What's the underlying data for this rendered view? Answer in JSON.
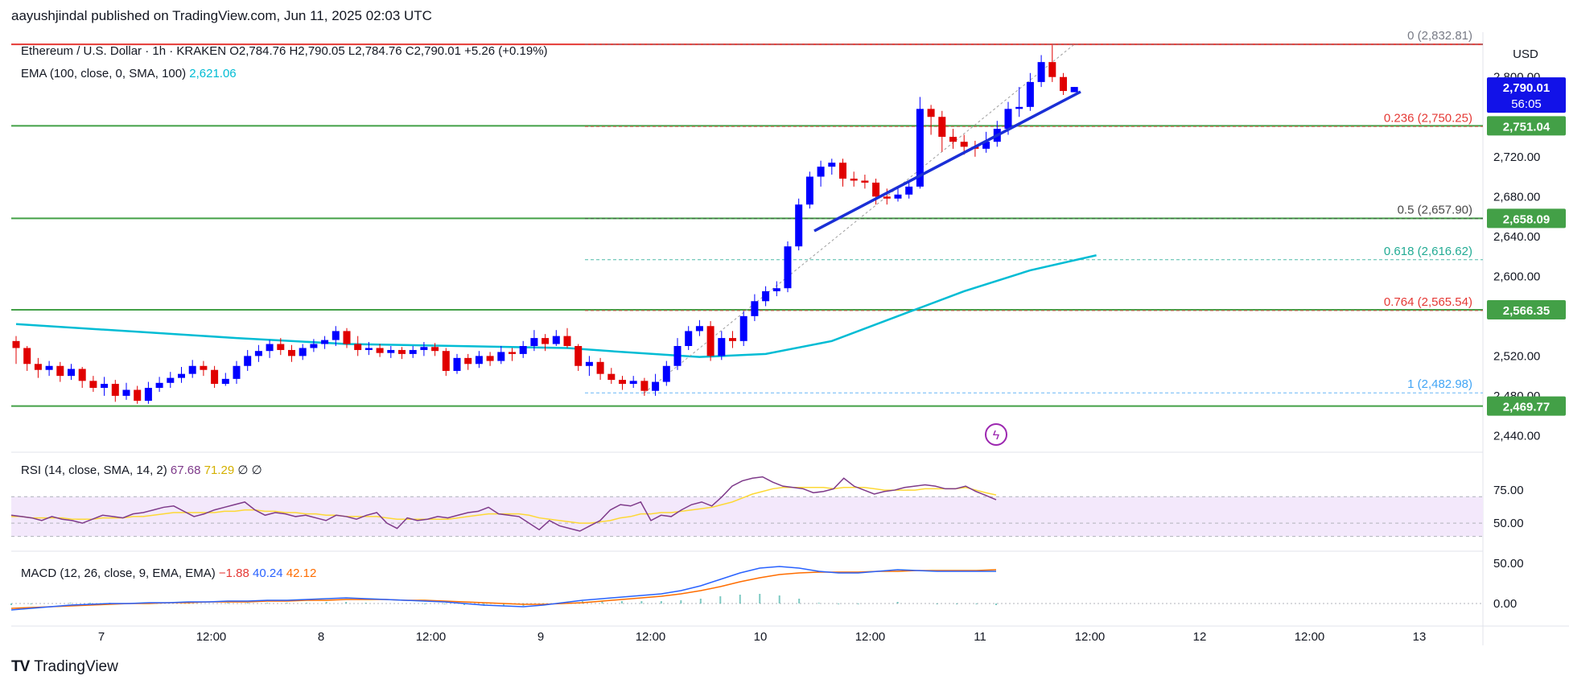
{
  "header": {
    "published": "aayushjindal published on TradingView.com, Jun 11, 2025 02:03 UTC"
  },
  "legend": {
    "symbol": "Ethereum / U.S. Dollar · 1h · KRAKEN",
    "ohlc": "O2,784.76  H2,790.05  L2,784.76  C2,790.01  +5.26 (+0.19%)",
    "ema_label": "EMA (100, close, 0, SMA, 100)",
    "ema_value": "2,621.06",
    "rsi_label": "RSI (14, close, SMA, 14, 2)",
    "rsi_value": "67.68",
    "rsi_ma": "71.29",
    "rsi_extra": "∅  ∅",
    "macd_label": "MACD (12, 26, close, 9, EMA, EMA)",
    "macd_hist": "−1.88",
    "macd_line": "40.24",
    "macd_signal": "42.12"
  },
  "price_axis": {
    "currency": "USD",
    "ticks": [
      "2,800.00",
      "2,720.00",
      "2,680.00",
      "2,640.00",
      "2,600.00",
      "2,520.00",
      "2,480.00",
      "2,440.00"
    ],
    "tick_values": [
      2800,
      2720,
      2680,
      2640,
      2600,
      2520,
      2480,
      2440
    ],
    "current_price": "2,790.01",
    "countdown": "56:05",
    "level_badges": [
      "2,751.04",
      "2,658.09",
      "2,566.35",
      "2,469.77"
    ]
  },
  "rsi_axis": {
    "ticks": [
      "75.00",
      "50.00"
    ]
  },
  "macd_axis": {
    "ticks": [
      "50.00",
      "0.00"
    ]
  },
  "time_axis": {
    "labels": [
      "7",
      "12:00",
      "8",
      "12:00",
      "9",
      "12:00",
      "10",
      "12:00",
      "11",
      "12:00",
      "12",
      "12:00",
      "13"
    ]
  },
  "fib_labels": [
    {
      "text": "0 (2,832.81)",
      "value": 2832.81,
      "color": "#787b86"
    },
    {
      "text": "0.236 (2,750.25)",
      "value": 2750.25,
      "color": "#e53935"
    },
    {
      "text": "0.5 (2,657.90)",
      "value": 2657.9,
      "color": "#4a4a4a"
    },
    {
      "text": "0.618 (2,616.62)",
      "value": 2616.62,
      "color": "#22ab94"
    },
    {
      "text": "0.764 (2,565.54)",
      "value": 2565.54,
      "color": "#e53935"
    },
    {
      "text": "1 (2,482.98)",
      "value": 2482.98,
      "color": "#42a5f5"
    }
  ],
  "colors": {
    "up": "#0000ff",
    "down": "#e00000",
    "ema": "#00bcd4",
    "support": "#43a047",
    "resistance": "#e53935",
    "trendline": "#1a2fd6",
    "rsi": "#7e3a8a",
    "rsi_ma": "#fdd835",
    "rsi_band": "#f3e8fb",
    "macd": "#2962ff",
    "signal": "#ff6d00",
    "hist": "#26a69a"
  },
  "logo": {
    "text": "TradingView",
    "mark": "TV"
  },
  "chart_data": {
    "type": "candlestick",
    "title": "Ethereum / U.S. Dollar · 1h · KRAKEN",
    "ylim": [
      2425,
      2845
    ],
    "horizontal_levels": [
      {
        "label": "2,832.81",
        "value": 2832.81,
        "color": "#e53935"
      },
      {
        "label": "2,751.04",
        "value": 2751.04,
        "color": "#43a047"
      },
      {
        "label": "2,658.09",
        "value": 2658.09,
        "color": "#43a047"
      },
      {
        "label": "2,566.35",
        "value": 2566.35,
        "color": "#43a047"
      },
      {
        "label": "2,469.77",
        "value": 2469.77,
        "color": "#43a047"
      }
    ],
    "candles": [
      [
        2535,
        2528,
        2540,
        2512
      ],
      [
        2528,
        2512,
        2530,
        2505
      ],
      [
        2512,
        2506,
        2518,
        2498
      ],
      [
        2506,
        2510,
        2515,
        2500
      ],
      [
        2510,
        2500,
        2514,
        2494
      ],
      [
        2500,
        2507,
        2512,
        2496
      ],
      [
        2507,
        2495,
        2509,
        2488
      ],
      [
        2495,
        2488,
        2500,
        2484
      ],
      [
        2488,
        2492,
        2499,
        2480
      ],
      [
        2492,
        2480,
        2496,
        2474
      ],
      [
        2480,
        2486,
        2493,
        2476
      ],
      [
        2486,
        2475,
        2490,
        2472
      ],
      [
        2475,
        2488,
        2494,
        2472
      ],
      [
        2488,
        2493,
        2499,
        2484
      ],
      [
        2493,
        2498,
        2504,
        2488
      ],
      [
        2498,
        2502,
        2509,
        2493
      ],
      [
        2502,
        2510,
        2516,
        2498
      ],
      [
        2510,
        2506,
        2515,
        2500
      ],
      [
        2506,
        2492,
        2510,
        2488
      ],
      [
        2492,
        2497,
        2503,
        2490
      ],
      [
        2497,
        2510,
        2515,
        2492
      ],
      [
        2510,
        2520,
        2526,
        2505
      ],
      [
        2520,
        2525,
        2531,
        2514
      ],
      [
        2525,
        2532,
        2536,
        2518
      ],
      [
        2532,
        2526,
        2538,
        2521
      ],
      [
        2526,
        2520,
        2531,
        2514
      ],
      [
        2520,
        2528,
        2532,
        2516
      ],
      [
        2528,
        2532,
        2537,
        2524
      ],
      [
        2532,
        2536,
        2540,
        2527
      ],
      [
        2536,
        2545,
        2550,
        2530
      ],
      [
        2545,
        2532,
        2548,
        2528
      ],
      [
        2532,
        2526,
        2540,
        2520
      ],
      [
        2526,
        2528,
        2534,
        2521
      ],
      [
        2528,
        2523,
        2532,
        2519
      ],
      [
        2523,
        2526,
        2530,
        2518
      ],
      [
        2526,
        2522,
        2529,
        2517
      ],
      [
        2522,
        2526,
        2530,
        2518
      ],
      [
        2526,
        2529,
        2534,
        2520
      ],
      [
        2529,
        2525,
        2533,
        2520
      ],
      [
        2525,
        2505,
        2528,
        2500
      ],
      [
        2505,
        2518,
        2522,
        2502
      ],
      [
        2518,
        2512,
        2522,
        2506
      ],
      [
        2512,
        2520,
        2525,
        2508
      ],
      [
        2520,
        2515,
        2524,
        2510
      ],
      [
        2515,
        2524,
        2530,
        2512
      ],
      [
        2524,
        2522,
        2528,
        2515
      ],
      [
        2522,
        2530,
        2535,
        2518
      ],
      [
        2530,
        2538,
        2546,
        2525
      ],
      [
        2538,
        2532,
        2542,
        2525
      ],
      [
        2532,
        2540,
        2546,
        2530
      ],
      [
        2540,
        2530,
        2548,
        2528
      ],
      [
        2530,
        2510,
        2532,
        2505
      ],
      [
        2510,
        2514,
        2520,
        2500
      ],
      [
        2514,
        2502,
        2518,
        2496
      ],
      [
        2502,
        2496,
        2508,
        2492
      ],
      [
        2496,
        2492,
        2500,
        2486
      ],
      [
        2492,
        2495,
        2500,
        2488
      ],
      [
        2495,
        2485,
        2498,
        2480
      ],
      [
        2485,
        2494,
        2502,
        2480
      ],
      [
        2494,
        2510,
        2515,
        2490
      ],
      [
        2510,
        2530,
        2538,
        2506
      ],
      [
        2530,
        2545,
        2550,
        2526
      ],
      [
        2545,
        2550,
        2556,
        2540
      ],
      [
        2550,
        2520,
        2555,
        2515
      ],
      [
        2520,
        2538,
        2545,
        2516
      ],
      [
        2538,
        2535,
        2545,
        2528
      ],
      [
        2535,
        2560,
        2565,
        2530
      ],
      [
        2560,
        2575,
        2582,
        2555
      ],
      [
        2575,
        2585,
        2590,
        2570
      ],
      [
        2585,
        2588,
        2595,
        2580
      ],
      [
        2588,
        2630,
        2635,
        2584
      ],
      [
        2630,
        2672,
        2678,
        2626
      ],
      [
        2672,
        2700,
        2705,
        2668
      ],
      [
        2700,
        2710,
        2716,
        2690
      ],
      [
        2710,
        2714,
        2718,
        2702
      ],
      [
        2714,
        2698,
        2718,
        2690
      ],
      [
        2698,
        2696,
        2705,
        2690
      ],
      [
        2696,
        2694,
        2702,
        2688
      ],
      [
        2694,
        2680,
        2698,
        2672
      ],
      [
        2680,
        2678,
        2688,
        2672
      ],
      [
        2678,
        2682,
        2690,
        2675
      ],
      [
        2682,
        2690,
        2696,
        2678
      ],
      [
        2690,
        2768,
        2780,
        2688
      ],
      [
        2768,
        2760,
        2772,
        2742
      ],
      [
        2760,
        2740,
        2766,
        2725
      ],
      [
        2740,
        2735,
        2748,
        2728
      ],
      [
        2735,
        2730,
        2742,
        2722
      ],
      [
        2730,
        2728,
        2736,
        2720
      ],
      [
        2728,
        2735,
        2745,
        2724
      ],
      [
        2735,
        2748,
        2756,
        2730
      ],
      [
        2748,
        2768,
        2775,
        2742
      ],
      [
        2768,
        2770,
        2790,
        2760
      ],
      [
        2770,
        2795,
        2804,
        2766
      ],
      [
        2795,
        2815,
        2822,
        2790
      ],
      [
        2815,
        2800,
        2832,
        2795
      ],
      [
        2800,
        2786,
        2804,
        2782
      ],
      [
        2784.76,
        2790.01,
        2790.05,
        2784.76
      ]
    ],
    "ema": [
      [
        0,
        2552
      ],
      [
        10,
        2545
      ],
      [
        20,
        2538
      ],
      [
        30,
        2532
      ],
      [
        40,
        2530
      ],
      [
        50,
        2528
      ],
      [
        55,
        2524
      ],
      [
        62,
        2519
      ],
      [
        68,
        2522
      ],
      [
        74,
        2535
      ],
      [
        80,
        2560
      ],
      [
        86,
        2585
      ],
      [
        92,
        2606
      ],
      [
        98,
        2621.06
      ]
    ],
    "rsi": {
      "ylim": [
        30,
        100
      ],
      "bands": [
        70,
        60,
        50,
        40
      ],
      "series_rsi": [
        56,
        55,
        54,
        52,
        55,
        53,
        52,
        50,
        53,
        56,
        55,
        54,
        57,
        58,
        60,
        62,
        63,
        59,
        55,
        57,
        60,
        62,
        64,
        66,
        60,
        56,
        58,
        57,
        55,
        56,
        54,
        52,
        56,
        55,
        53,
        56,
        58,
        50,
        46,
        54,
        52,
        53,
        55,
        54,
        56,
        58,
        59,
        62,
        57,
        56,
        55,
        50,
        45,
        52,
        48,
        46,
        44,
        48,
        52,
        60,
        64,
        63,
        66,
        52,
        56,
        55,
        60,
        64,
        66,
        63,
        70,
        78,
        82,
        84,
        85,
        81,
        78,
        77,
        76,
        73,
        74,
        76,
        84,
        78,
        75,
        72,
        74,
        75,
        77,
        78,
        79,
        78,
        76,
        76,
        78,
        74,
        71,
        67.68
      ],
      "series_ma": [
        55,
        55,
        54,
        54,
        54,
        54,
        53,
        53,
        53,
        54,
        54,
        54,
        55,
        55,
        56,
        57,
        58,
        58,
        58,
        58,
        58,
        59,
        59,
        60,
        60,
        59,
        59,
        58,
        58,
        57,
        57,
        56,
        56,
        55,
        55,
        55,
        55,
        54,
        53,
        53,
        53,
        53,
        53,
        53,
        54,
        55,
        56,
        57,
        57,
        57,
        57,
        56,
        54,
        53,
        52,
        51,
        50,
        50,
        51,
        52,
        54,
        55,
        57,
        57,
        58,
        58,
        59,
        60,
        61,
        62,
        64,
        66,
        69,
        72,
        74,
        76,
        77,
        77,
        77,
        77,
        77,
        76,
        77,
        77,
        77,
        76,
        75,
        75,
        75,
        75,
        76,
        76,
        76,
        76,
        77,
        75,
        73,
        71.29
      ]
    },
    "macd": {
      "ylim": [
        -15,
        60
      ],
      "series_macd": [
        -8,
        -6,
        -4,
        -2,
        -1,
        0,
        0,
        1,
        1,
        2,
        2,
        3,
        3,
        4,
        4,
        5,
        6,
        7,
        6,
        5,
        4,
        3,
        2,
        0,
        -2,
        -3,
        -4,
        -2,
        1,
        4,
        6,
        8,
        10,
        12,
        16,
        22,
        30,
        38,
        44,
        46,
        44,
        40,
        38,
        38,
        40,
        42,
        41,
        40,
        40,
        40,
        40
      ],
      "series_signal": [
        -6,
        -5,
        -4,
        -3,
        -2,
        -1,
        0,
        0,
        1,
        1,
        2,
        2,
        2,
        3,
        3,
        4,
        4,
        5,
        5,
        5,
        4,
        4,
        3,
        2,
        1,
        0,
        -1,
        -1,
        0,
        1,
        3,
        5,
        7,
        9,
        12,
        16,
        21,
        27,
        32,
        36,
        38,
        39,
        39,
        39,
        40,
        40,
        41,
        41,
        41,
        41,
        42
      ]
    }
  }
}
